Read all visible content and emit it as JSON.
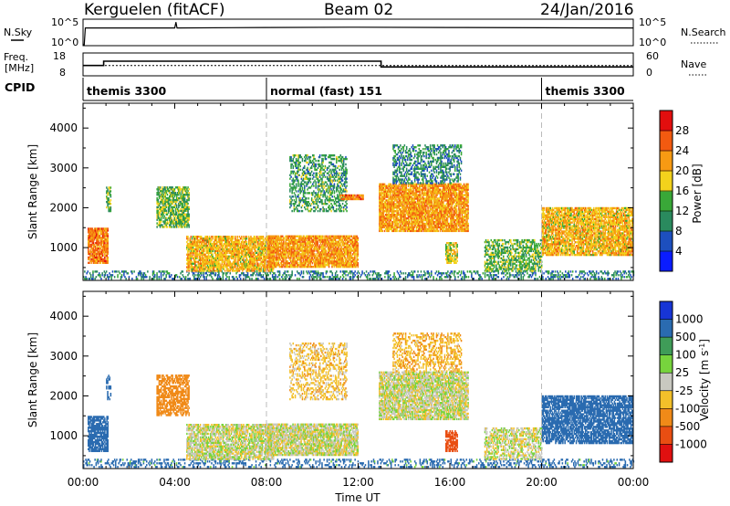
{
  "header": {
    "station": "Kerguelen (fitACF)",
    "beam": "Beam 02",
    "date": "24/Jan/2016"
  },
  "nsky_panel": {
    "left_label": "N.Sky",
    "right_label": "N.Search",
    "left_ticks": [
      "10^5",
      "10^0"
    ],
    "right_ticks": [
      "10^5",
      "10^0"
    ]
  },
  "freq_panel": {
    "left_label_line1": "Freq.",
    "left_label_line2": "[MHz]",
    "right_label": "Nave",
    "left_ticks": [
      "18",
      "8"
    ],
    "right_ticks": [
      "60",
      "0"
    ]
  },
  "cpid_panel": {
    "label": "CPID",
    "segments": [
      {
        "name": "themis 3300",
        "start": 0,
        "end": 8
      },
      {
        "name": "normal (fast) 151",
        "start": 8,
        "end": 20
      },
      {
        "name": "themis 3300",
        "start": 20,
        "end": 24
      }
    ]
  },
  "power_panel": {
    "ylabel": "Slant Range [km]",
    "yticks": [
      "1000",
      "2000",
      "3000",
      "4000"
    ],
    "colorbar_label": "Power [dB]",
    "colorbar_ticks": [
      "4",
      "8",
      "12",
      "16",
      "20",
      "24",
      "28"
    ],
    "colors": [
      "#0a1cff",
      "#1d4fbe",
      "#2a8a5e",
      "#39a838",
      "#f3d21c",
      "#f79a13",
      "#f25a10",
      "#e20e0e"
    ]
  },
  "velocity_panel": {
    "ylabel": "Slant Range [km]",
    "yticks": [
      "1000",
      "2000",
      "3000",
      "4000"
    ],
    "colorbar_label": "Velocity [m s",
    "colorbar_unit_sup": "-1",
    "colorbar_unit_close": "]",
    "colorbar_ticks": [
      "1000",
      "500",
      "100",
      "25",
      "-25",
      "-100",
      "-500",
      "-1000"
    ],
    "colors": [
      "#1735d6",
      "#2a6bb0",
      "#3f9c58",
      "#77d43d",
      "#c8c8c0",
      "#f3c02a",
      "#f08a18",
      "#e94e12",
      "#e01010"
    ]
  },
  "x_axis": {
    "label": "Time UT",
    "ticks": [
      "00:00",
      "04:00",
      "08:00",
      "12:00",
      "16:00",
      "20:00",
      "00:00"
    ]
  },
  "chart_data": [
    {
      "type": "line",
      "title": "N.Sky",
      "xlabel": "",
      "ylabel": "N.Sky",
      "xlim": [
        0,
        24
      ],
      "ylim": [
        0,
        5
      ],
      "x": [
        0,
        0.05,
        0.1,
        4,
        4.05,
        4.1,
        8,
        12,
        16,
        20,
        24
      ],
      "values": [
        0,
        0,
        3.4,
        3.4,
        4.6,
        3.4,
        3.5,
        3.55,
        3.5,
        3.45,
        3.4
      ]
    },
    {
      "type": "line",
      "title": "Freq. [MHz]",
      "xlabel": "",
      "ylabel": "Freq. [MHz]",
      "xlim": [
        0,
        24
      ],
      "ylim": [
        8,
        18
      ],
      "series": [
        {
          "name": "Freq.",
          "x": [
            0,
            0.9,
            0.9,
            13,
            13,
            24
          ],
          "values": [
            12.5,
            12.5,
            14.5,
            14.5,
            11.8,
            11.8
          ]
        },
        {
          "name": "Nave",
          "x": [
            0,
            24
          ],
          "values": [
            12.5,
            12.5
          ]
        }
      ]
    },
    {
      "type": "heatmap",
      "title": "Power [dB]",
      "xlabel": "",
      "ylabel": "Slant Range [km]",
      "xlim": [
        0,
        24
      ],
      "ylim": [
        200,
        4600
      ],
      "zlim": [
        0,
        32
      ],
      "regions": [
        {
          "t0": 0,
          "t1": 24,
          "r0": 200,
          "r1": 420,
          "power": 9,
          "density": 0.35
        },
        {
          "t0": 0.2,
          "t1": 1.1,
          "r0": 600,
          "r1": 1500,
          "power": 24,
          "density": 0.85
        },
        {
          "t0": 1,
          "t1": 1.2,
          "r0": 1900,
          "r1": 2500,
          "power": 14,
          "density": 0.6
        },
        {
          "t0": 3.2,
          "t1": 4.6,
          "r0": 1500,
          "r1": 2500,
          "power": 14,
          "density": 0.7
        },
        {
          "t0": 4.5,
          "t1": 8.3,
          "r0": 400,
          "r1": 1300,
          "power": 20,
          "density": 0.8
        },
        {
          "t0": 8,
          "t1": 12,
          "r0": 500,
          "r1": 1300,
          "power": 22,
          "density": 0.85
        },
        {
          "t0": 9,
          "t1": 11.5,
          "r0": 1900,
          "r1": 3300,
          "power": 12,
          "density": 0.45
        },
        {
          "t0": 11.2,
          "t1": 12.2,
          "r0": 2200,
          "r1": 2300,
          "power": 24,
          "density": 0.9
        },
        {
          "t0": 12.9,
          "t1": 16.8,
          "r0": 1400,
          "r1": 2600,
          "power": 22,
          "density": 0.85
        },
        {
          "t0": 13.5,
          "t1": 16.5,
          "r0": 2600,
          "r1": 3550,
          "power": 10,
          "density": 0.45
        },
        {
          "t0": 15.8,
          "t1": 16.3,
          "r0": 600,
          "r1": 1100,
          "power": 18,
          "density": 0.7
        },
        {
          "t0": 17.5,
          "t1": 20,
          "r0": 400,
          "r1": 1200,
          "power": 14,
          "density": 0.55
        },
        {
          "t0": 20,
          "t1": 24,
          "r0": 800,
          "r1": 2000,
          "power": 20,
          "density": 0.8
        }
      ]
    },
    {
      "type": "heatmap",
      "title": "Velocity [m s-1]",
      "xlabel": "Time UT",
      "ylabel": "Slant Range [km]",
      "xlim": [
        0,
        24
      ],
      "ylim": [
        200,
        4600
      ],
      "zlim": [
        -1000,
        1000
      ],
      "regions": [
        {
          "t0": 0,
          "t1": 24,
          "r0": 200,
          "r1": 420,
          "velocity": 150,
          "density": 0.3
        },
        {
          "t0": 0.2,
          "t1": 1.1,
          "r0": 600,
          "r1": 1500,
          "velocity": 200,
          "density": 0.8
        },
        {
          "t0": 1,
          "t1": 1.2,
          "r0": 1900,
          "r1": 2500,
          "velocity": 300,
          "density": 0.5
        },
        {
          "t0": 3.2,
          "t1": 4.6,
          "r0": 1500,
          "r1": 2500,
          "velocity": -250,
          "density": 0.65
        },
        {
          "t0": 4.5,
          "t1": 8.3,
          "r0": 400,
          "r1": 1300,
          "velocity": 0,
          "density": 0.75
        },
        {
          "t0": 8,
          "t1": 12,
          "r0": 500,
          "r1": 1300,
          "velocity": 0,
          "density": 0.8
        },
        {
          "t0": 9,
          "t1": 11.5,
          "r0": 1900,
          "r1": 3300,
          "velocity": -60,
          "density": 0.4
        },
        {
          "t0": 12.9,
          "t1": 16.8,
          "r0": 1400,
          "r1": 2600,
          "velocity": 0,
          "density": 0.8
        },
        {
          "t0": 13.5,
          "t1": 16.5,
          "r0": 2600,
          "r1": 3550,
          "velocity": -80,
          "density": 0.4
        },
        {
          "t0": 15.8,
          "t1": 16.3,
          "r0": 600,
          "r1": 1100,
          "velocity": -600,
          "density": 0.7
        },
        {
          "t0": 17.5,
          "t1": 20,
          "r0": 400,
          "r1": 1200,
          "velocity": 0,
          "density": 0.55
        },
        {
          "t0": 20,
          "t1": 24,
          "r0": 800,
          "r1": 2000,
          "velocity": 250,
          "density": 0.75
        }
      ]
    }
  ]
}
